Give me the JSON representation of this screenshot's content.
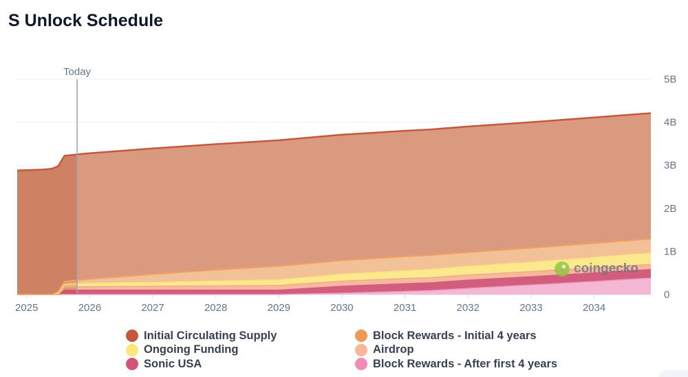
{
  "title": "S Unlock Schedule",
  "watermark": "coingecko",
  "chart_data": {
    "type": "area",
    "stacked": true,
    "title": "S Unlock Schedule",
    "xlabel": "",
    "ylabel": "",
    "x_range": [
      2024.85,
      2034.9
    ],
    "ylim": [
      0,
      5
    ],
    "y_unit": "B",
    "x_ticks": [
      "2025",
      "2026",
      "2027",
      "2028",
      "2029",
      "2030",
      "2031",
      "2032",
      "2033",
      "2034"
    ],
    "y_ticks": [
      "0",
      "1B",
      "2B",
      "3B",
      "4B",
      "5B"
    ],
    "today_marker": {
      "label": "Today",
      "x": 2025.8
    },
    "x": [
      2024.85,
      2025.25,
      2025.4,
      2025.5,
      2025.6,
      2025.8,
      2026,
      2027,
      2028,
      2029,
      2030,
      2031,
      2031.4,
      2032,
      2033,
      2034,
      2034.9
    ],
    "series": [
      {
        "name": "Block Rewards - After first 4 years",
        "color": "#f4b8d4",
        "values": [
          0,
          0,
          0,
          0,
          0,
          0,
          0,
          0,
          0,
          0,
          0.03,
          0.07,
          0.09,
          0.14,
          0.22,
          0.3,
          0.38
        ]
      },
      {
        "name": "Sonic USA",
        "color": "#d35d7d",
        "values": [
          0,
          0,
          0,
          0,
          0.1,
          0.1,
          0.1,
          0.1,
          0.1,
          0.1,
          0.16,
          0.18,
          0.18,
          0.19,
          0.19,
          0.2,
          0.2
        ]
      },
      {
        "name": "Airdrop",
        "color": "#f7b99b",
        "values": [
          0,
          0,
          0,
          0,
          0.07,
          0.08,
          0.08,
          0.09,
          0.1,
          0.11,
          0.12,
          0.12,
          0.12,
          0.12,
          0.12,
          0.12,
          0.12
        ]
      },
      {
        "name": "Ongoing Funding",
        "color": "#fce98e",
        "values": [
          0,
          0,
          0,
          0.03,
          0.06,
          0.07,
          0.08,
          0.09,
          0.11,
          0.13,
          0.16,
          0.18,
          0.19,
          0.2,
          0.22,
          0.24,
          0.26
        ]
      },
      {
        "name": "Block Rewards - Initial 4 years",
        "color": "#f3c198",
        "values": [
          0,
          0,
          0,
          0.03,
          0.07,
          0.08,
          0.1,
          0.19,
          0.26,
          0.32,
          0.32,
          0.33,
          0.33,
          0.33,
          0.33,
          0.33,
          0.33
        ]
      },
      {
        "name": "Initial Circulating Supply",
        "color": "#d99a80",
        "values": [
          2.88,
          2.9,
          2.92,
          2.92,
          2.92,
          2.92,
          2.92,
          2.92,
          2.92,
          2.92,
          2.92,
          2.92,
          2.92,
          2.92,
          2.92,
          2.92,
          2.92
        ]
      }
    ]
  },
  "legend": {
    "left": [
      {
        "label": "Initial Circulating Supply",
        "color": "#c4583c"
      },
      {
        "label": "Ongoing Funding",
        "color": "#fce77d"
      },
      {
        "label": "Sonic USA",
        "color": "#d15578"
      }
    ],
    "right": [
      {
        "label": "Block Rewards - Initial 4 years",
        "color": "#ec9a56"
      },
      {
        "label": "Airdrop",
        "color": "#f8b897"
      },
      {
        "label": "Block Rewards - After first 4 years",
        "color": "#f08cb5"
      }
    ]
  }
}
